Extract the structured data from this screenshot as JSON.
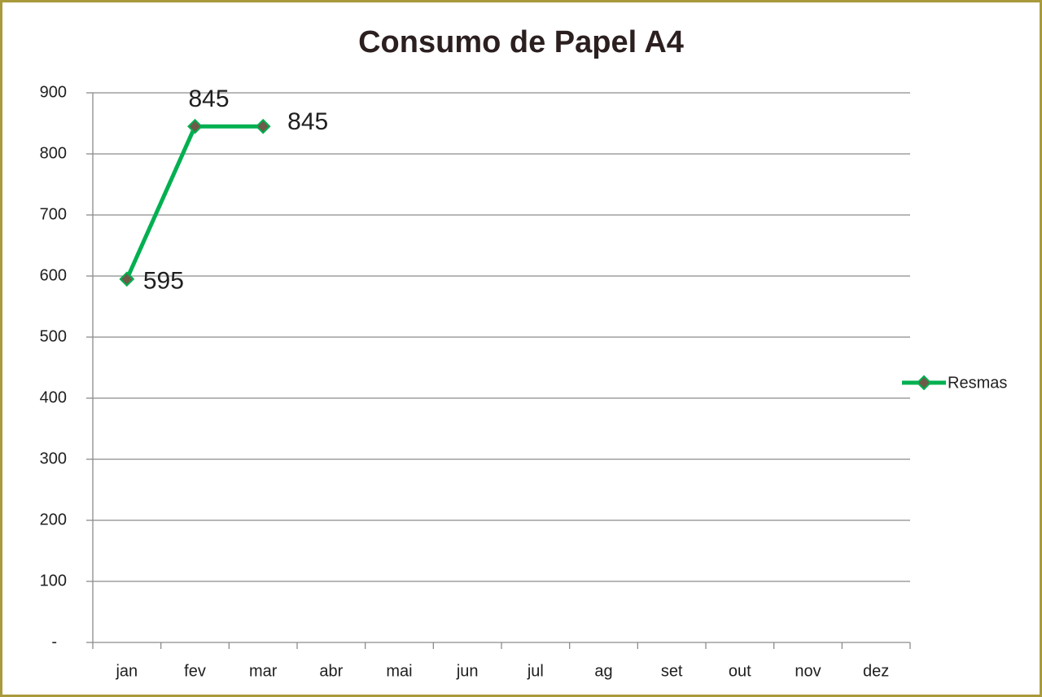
{
  "chart_data": {
    "type": "line",
    "title": "Consumo de Papel A4",
    "categories": [
      "jan",
      "fev",
      "mar",
      "abr",
      "mai",
      "jun",
      "jul",
      "ag",
      "set",
      "out",
      "nov",
      "dez"
    ],
    "series": [
      {
        "name": "Resmas",
        "color": "#00b050",
        "marker_color": "#6e5a48",
        "values": [
          595,
          845,
          845,
          null,
          null,
          null,
          null,
          null,
          null,
          null,
          null,
          null
        ]
      }
    ],
    "ylim": [
      0,
      900
    ],
    "yticks": [
      {
        "value": 0,
        "label": "-"
      },
      100,
      200,
      300,
      400,
      500,
      600,
      700,
      800,
      900
    ],
    "grid": true,
    "legend": "right"
  }
}
